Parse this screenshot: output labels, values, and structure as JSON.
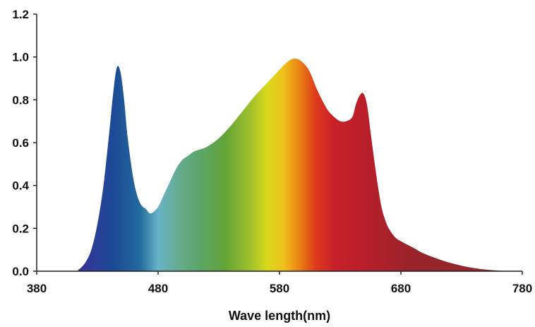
{
  "chart_data": {
    "type": "area",
    "title": "",
    "xlabel": "Wave length(nm)",
    "ylabel": "",
    "xlim": [
      380,
      780
    ],
    "ylim": [
      0,
      1.2
    ],
    "x_ticks": [
      "380",
      "480",
      "580",
      "680",
      "780"
    ],
    "y_ticks": [
      "0.0",
      "0.2",
      "0.4",
      "0.6",
      "0.8",
      "1.0",
      "1.2"
    ],
    "grid": false,
    "legend": "none",
    "fill": "visible-spectrum gradient",
    "series": [
      {
        "x": [
          380,
          410,
          415,
          420,
          425,
          430,
          435,
          440,
          443,
          446,
          449,
          452,
          455,
          460,
          465,
          470,
          474,
          480,
          485,
          490,
          495,
          500,
          505,
          510,
          520,
          530,
          540,
          550,
          560,
          570,
          580,
          585,
          590,
          595,
          600,
          605,
          610,
          615,
          620,
          625,
          630,
          635,
          640,
          643,
          646,
          649,
          652,
          655,
          658,
          661,
          664,
          667,
          670,
          675,
          680,
          690,
          700,
          720,
          740,
          760,
          780
        ],
        "y": [
          0.0,
          0.0,
          0.01,
          0.04,
          0.1,
          0.22,
          0.4,
          0.66,
          0.83,
          0.95,
          0.93,
          0.8,
          0.62,
          0.42,
          0.32,
          0.29,
          0.27,
          0.3,
          0.36,
          0.42,
          0.48,
          0.52,
          0.54,
          0.56,
          0.58,
          0.62,
          0.68,
          0.75,
          0.82,
          0.88,
          0.94,
          0.97,
          0.99,
          0.99,
          0.97,
          0.93,
          0.86,
          0.8,
          0.75,
          0.72,
          0.7,
          0.7,
          0.72,
          0.78,
          0.82,
          0.83,
          0.78,
          0.65,
          0.52,
          0.4,
          0.3,
          0.24,
          0.2,
          0.16,
          0.14,
          0.11,
          0.08,
          0.04,
          0.015,
          0.003,
          0.0
        ]
      }
    ],
    "spectrum_colors": [
      {
        "x": 410,
        "color": "#3a2d8f"
      },
      {
        "x": 425,
        "color": "#2d3b96"
      },
      {
        "x": 445,
        "color": "#1b4c95"
      },
      {
        "x": 465,
        "color": "#236a9e"
      },
      {
        "x": 480,
        "color": "#68b3c8"
      },
      {
        "x": 495,
        "color": "#66ad96"
      },
      {
        "x": 515,
        "color": "#5aa566"
      },
      {
        "x": 535,
        "color": "#62a438"
      },
      {
        "x": 555,
        "color": "#9dbf2c"
      },
      {
        "x": 570,
        "color": "#d9d81c"
      },
      {
        "x": 583,
        "color": "#f0c21c"
      },
      {
        "x": 595,
        "color": "#eb8a13"
      },
      {
        "x": 610,
        "color": "#dd3a1c"
      },
      {
        "x": 625,
        "color": "#c8202a"
      },
      {
        "x": 650,
        "color": "#b81f2a"
      },
      {
        "x": 690,
        "color": "#98232a"
      },
      {
        "x": 780,
        "color": "#8f2a2b"
      }
    ],
    "axis_color": "#222222"
  }
}
